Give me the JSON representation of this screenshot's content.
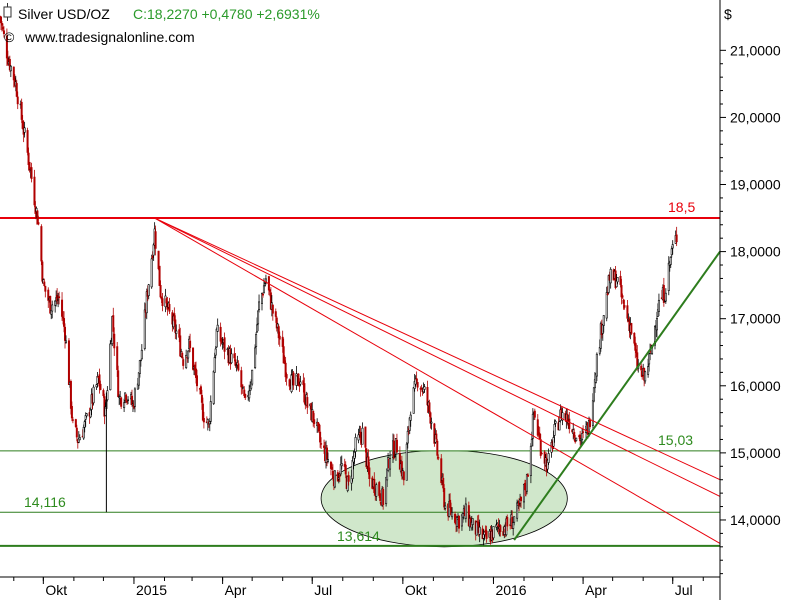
{
  "header": {
    "symbol": "Silver USD/OZ",
    "quote": "C:18,2270 +0,4780 +2,6931%",
    "source": "www.tradesignalonline.com",
    "currency": "$"
  },
  "colors": {
    "background": "#ffffff",
    "resistance": "#e8000b",
    "support": "#2e7d1e",
    "label_green": "#2e8b1e",
    "quote_green": "#2a9a2a",
    "fill_green": "#a9d3a0",
    "candle_up": "#000000",
    "candle_down": "#b00000"
  },
  "chart_data": {
    "type": "candlestick",
    "title": "Silver USD/OZ",
    "ylabel": "$",
    "ylim": [
      13.15,
      21.75
    ],
    "xlim": [
      "2014-08-18",
      "2016-08-18"
    ],
    "x_ticks": [
      {
        "label": "Okt",
        "date": "2014-10-01"
      },
      {
        "label": "2015",
        "date": "2015-01-01"
      },
      {
        "label": "Apr",
        "date": "2015-04-01"
      },
      {
        "label": "Jul",
        "date": "2015-07-01"
      },
      {
        "label": "Okt",
        "date": "2015-10-01"
      },
      {
        "label": "2016",
        "date": "2016-01-01"
      },
      {
        "label": "Apr",
        "date": "2016-04-01"
      },
      {
        "label": "Jul",
        "date": "2016-07-01"
      }
    ],
    "y_ticks": [
      "14,0000",
      "15,0000",
      "16,0000",
      "17,0000",
      "18,0000",
      "19,0000",
      "20,0000",
      "21,0000"
    ],
    "y_tick_values": [
      14,
      15,
      16,
      17,
      18,
      19,
      20,
      21
    ],
    "price_path": [
      [
        "2014-08-18",
        21.5
      ],
      [
        "2014-08-26",
        20.9
      ],
      [
        "2014-09-03",
        20.5
      ],
      [
        "2014-09-10",
        19.9
      ],
      [
        "2014-09-18",
        19.2
      ],
      [
        "2014-09-26",
        18.4
      ],
      [
        "2014-10-01",
        17.5
      ],
      [
        "2014-10-08",
        17.2
      ],
      [
        "2014-10-17",
        17.3
      ],
      [
        "2014-10-23",
        16.8
      ],
      [
        "2014-10-31",
        15.4
      ],
      [
        "2014-11-05",
        15.2
      ],
      [
        "2014-11-12",
        15.4
      ],
      [
        "2014-11-18",
        15.7
      ],
      [
        "2014-11-26",
        16.1
      ],
      [
        "2014-12-03",
        15.6
      ],
      [
        "2014-12-10",
        17.0
      ],
      [
        "2014-12-17",
        15.8
      ],
      [
        "2014-12-24",
        15.9
      ],
      [
        "2014-12-31",
        15.7
      ],
      [
        "2015-01-08",
        16.4
      ],
      [
        "2015-01-14",
        17.3
      ],
      [
        "2015-01-22",
        18.3
      ],
      [
        "2015-01-28",
        17.4
      ],
      [
        "2015-02-05",
        17.1
      ],
      [
        "2015-02-13",
        16.8
      ],
      [
        "2015-02-20",
        16.4
      ],
      [
        "2015-02-26",
        16.6
      ],
      [
        "2015-03-05",
        16.1
      ],
      [
        "2015-03-12",
        15.6
      ],
      [
        "2015-03-18",
        15.4
      ],
      [
        "2015-03-26",
        16.8
      ],
      [
        "2015-04-02",
        16.6
      ],
      [
        "2015-04-10",
        16.4
      ],
      [
        "2015-04-17",
        16.2
      ],
      [
        "2015-04-24",
        15.7
      ],
      [
        "2015-05-01",
        16.2
      ],
      [
        "2015-05-08",
        17.2
      ],
      [
        "2015-05-15",
        17.6
      ],
      [
        "2015-05-22",
        17.1
      ],
      [
        "2015-05-29",
        16.7
      ],
      [
        "2015-06-05",
        16.2
      ],
      [
        "2015-06-12",
        16.0
      ],
      [
        "2015-06-19",
        16.1
      ],
      [
        "2015-06-26",
        15.7
      ],
      [
        "2015-07-03",
        15.5
      ],
      [
        "2015-07-10",
        15.1
      ],
      [
        "2015-07-17",
        14.9
      ],
      [
        "2015-07-24",
        14.6
      ],
      [
        "2015-07-31",
        14.8
      ],
      [
        "2015-08-07",
        14.5
      ],
      [
        "2015-08-14",
        15.1
      ],
      [
        "2015-08-21",
        15.3
      ],
      [
        "2015-08-28",
        14.6
      ],
      [
        "2015-09-04",
        14.5
      ],
      [
        "2015-09-11",
        14.3
      ],
      [
        "2015-09-18",
        15.0
      ],
      [
        "2015-09-25",
        15.1
      ],
      [
        "2015-10-02",
        14.6
      ],
      [
        "2015-10-09",
        15.7
      ],
      [
        "2015-10-16",
        16.1
      ],
      [
        "2015-10-23",
        15.9
      ],
      [
        "2015-10-30",
        15.5
      ],
      [
        "2015-11-06",
        14.9
      ],
      [
        "2015-11-13",
        14.2
      ],
      [
        "2015-11-20",
        14.1
      ],
      [
        "2015-11-27",
        14.0
      ],
      [
        "2015-12-04",
        14.1
      ],
      [
        "2015-12-11",
        13.9
      ],
      [
        "2015-12-18",
        13.8
      ],
      [
        "2015-12-24",
        13.7
      ],
      [
        "2015-12-31",
        13.8
      ],
      [
        "2016-01-07",
        13.9
      ],
      [
        "2016-01-14",
        13.9
      ],
      [
        "2016-01-21",
        14.0
      ],
      [
        "2016-01-28",
        14.2
      ],
      [
        "2016-02-04",
        14.6
      ],
      [
        "2016-02-11",
        15.6
      ],
      [
        "2016-02-18",
        15.1
      ],
      [
        "2016-02-25",
        14.8
      ],
      [
        "2016-03-03",
        15.3
      ],
      [
        "2016-03-10",
        15.6
      ],
      [
        "2016-03-17",
        15.5
      ],
      [
        "2016-03-24",
        15.3
      ],
      [
        "2016-03-31",
        15.2
      ],
      [
        "2016-04-07",
        15.4
      ],
      [
        "2016-04-14",
        16.3
      ],
      [
        "2016-04-21",
        17.0
      ],
      [
        "2016-04-28",
        17.6
      ],
      [
        "2016-05-05",
        17.6
      ],
      [
        "2016-05-12",
        17.2
      ],
      [
        "2016-05-19",
        16.9
      ],
      [
        "2016-05-26",
        16.3
      ],
      [
        "2016-06-02",
        16.1
      ],
      [
        "2016-06-09",
        16.5
      ],
      [
        "2016-06-16",
        17.2
      ],
      [
        "2016-06-23",
        17.4
      ],
      [
        "2016-06-30",
        18.0
      ],
      [
        "2016-07-05",
        18.22
      ]
    ],
    "spike_lows": [
      [
        "2014-12-04",
        14.116
      ]
    ],
    "horizontal_levels": [
      {
        "value": 18.5,
        "label": "18,5",
        "role": "resistance"
      },
      {
        "value": 15.03,
        "label": "15,03",
        "role": "support"
      },
      {
        "value": 14.116,
        "label": "14,116",
        "role": "support"
      },
      {
        "value": 13.614,
        "label": "13,614",
        "role": "support"
      }
    ],
    "trendlines": [
      {
        "role": "resistance",
        "from": [
          "2015-01-22",
          18.5
        ],
        "to": [
          "2016-08-18",
          14.6
        ]
      },
      {
        "role": "resistance",
        "from": [
          "2015-01-22",
          18.5
        ],
        "to": [
          "2016-08-18",
          14.35
        ]
      },
      {
        "role": "resistance",
        "from": [
          "2015-01-22",
          18.5
        ],
        "to": [
          "2016-08-18",
          13.65
        ]
      },
      {
        "role": "support",
        "from": [
          "2016-01-22",
          13.7
        ],
        "to": [
          "2016-08-18",
          18.0
        ]
      }
    ],
    "rounding_bottom": {
      "center": [
        "2015-11-12",
        14.32
      ],
      "x_halfwidth_days": 125,
      "y_halfheight": 0.72
    }
  }
}
